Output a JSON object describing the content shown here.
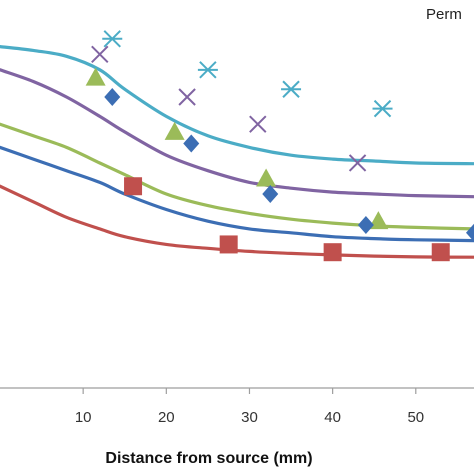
{
  "chart_data": {
    "type": "scatter",
    "title": "",
    "legend_text": "Perm",
    "xlabel": "Distance from source  (mm)",
    "ylabel": "",
    "xlim": [
      0,
      57
    ],
    "ylim": [
      0,
      1
    ],
    "x_ticks": [
      10,
      20,
      30,
      40,
      50
    ],
    "x_tick_labels": [
      "10",
      "20",
      "30",
      "40",
      "50"
    ],
    "grid": false,
    "legend": "top-right",
    "series": [
      {
        "color": "#4bacc6",
        "marker": "asterisk",
        "points": [
          [
            13.5,
            0.9
          ],
          [
            25.0,
            0.82
          ],
          [
            35.0,
            0.77
          ],
          [
            46.0,
            0.72
          ]
        ],
        "fit": [
          [
            0,
            0.88
          ],
          [
            4,
            0.87
          ],
          [
            8,
            0.855
          ],
          [
            12,
            0.82
          ],
          [
            15,
            0.77
          ],
          [
            20,
            0.7
          ],
          [
            25,
            0.65
          ],
          [
            30,
            0.62
          ],
          [
            35,
            0.6
          ],
          [
            40,
            0.59
          ],
          [
            45,
            0.585
          ],
          [
            50,
            0.58
          ],
          [
            57,
            0.578
          ]
        ]
      },
      {
        "color": "#8064a2",
        "marker": "cross",
        "points": [
          [
            12.0,
            0.86
          ],
          [
            22.5,
            0.75
          ],
          [
            31.0,
            0.68
          ],
          [
            43.0,
            0.58
          ]
        ],
        "fit": [
          [
            0,
            0.82
          ],
          [
            4,
            0.79
          ],
          [
            8,
            0.75
          ],
          [
            12,
            0.7
          ],
          [
            15,
            0.66
          ],
          [
            20,
            0.6
          ],
          [
            25,
            0.56
          ],
          [
            30,
            0.53
          ],
          [
            35,
            0.515
          ],
          [
            40,
            0.505
          ],
          [
            45,
            0.5
          ],
          [
            50,
            0.496
          ],
          [
            57,
            0.493
          ]
        ]
      },
      {
        "color": "#9bbb59",
        "marker": "triangle",
        "points": [
          [
            11.5,
            0.8
          ],
          [
            21.0,
            0.66
          ],
          [
            32.0,
            0.54
          ],
          [
            45.5,
            0.43
          ]
        ],
        "fit": [
          [
            0,
            0.68
          ],
          [
            4,
            0.65
          ],
          [
            8,
            0.62
          ],
          [
            12,
            0.58
          ],
          [
            15,
            0.55
          ],
          [
            20,
            0.5
          ],
          [
            25,
            0.47
          ],
          [
            30,
            0.45
          ],
          [
            35,
            0.435
          ],
          [
            40,
            0.425
          ],
          [
            45,
            0.418
          ],
          [
            50,
            0.414
          ],
          [
            57,
            0.41
          ]
        ]
      },
      {
        "color": "#3c6eb4",
        "marker": "diamond",
        "points": [
          [
            13.5,
            0.75
          ],
          [
            23.0,
            0.63
          ],
          [
            32.5,
            0.5
          ],
          [
            44.0,
            0.42
          ],
          [
            57.0,
            0.4
          ]
        ],
        "fit": [
          [
            0,
            0.62
          ],
          [
            4,
            0.59
          ],
          [
            8,
            0.56
          ],
          [
            12,
            0.53
          ],
          [
            15,
            0.5
          ],
          [
            20,
            0.46
          ],
          [
            25,
            0.43
          ],
          [
            30,
            0.41
          ],
          [
            35,
            0.4
          ],
          [
            40,
            0.39
          ],
          [
            45,
            0.385
          ],
          [
            50,
            0.382
          ],
          [
            57,
            0.38
          ]
        ]
      },
      {
        "color": "#c0504d",
        "marker": "square",
        "points": [
          [
            16.0,
            0.52
          ],
          [
            27.5,
            0.37
          ],
          [
            40.0,
            0.35
          ],
          [
            53.0,
            0.35
          ]
        ],
        "fit": [
          [
            0,
            0.52
          ],
          [
            4,
            0.48
          ],
          [
            8,
            0.44
          ],
          [
            12,
            0.41
          ],
          [
            15,
            0.39
          ],
          [
            20,
            0.37
          ],
          [
            25,
            0.36
          ],
          [
            30,
            0.352
          ],
          [
            35,
            0.347
          ],
          [
            40,
            0.343
          ],
          [
            45,
            0.34
          ],
          [
            50,
            0.338
          ],
          [
            57,
            0.337
          ]
        ]
      }
    ]
  }
}
